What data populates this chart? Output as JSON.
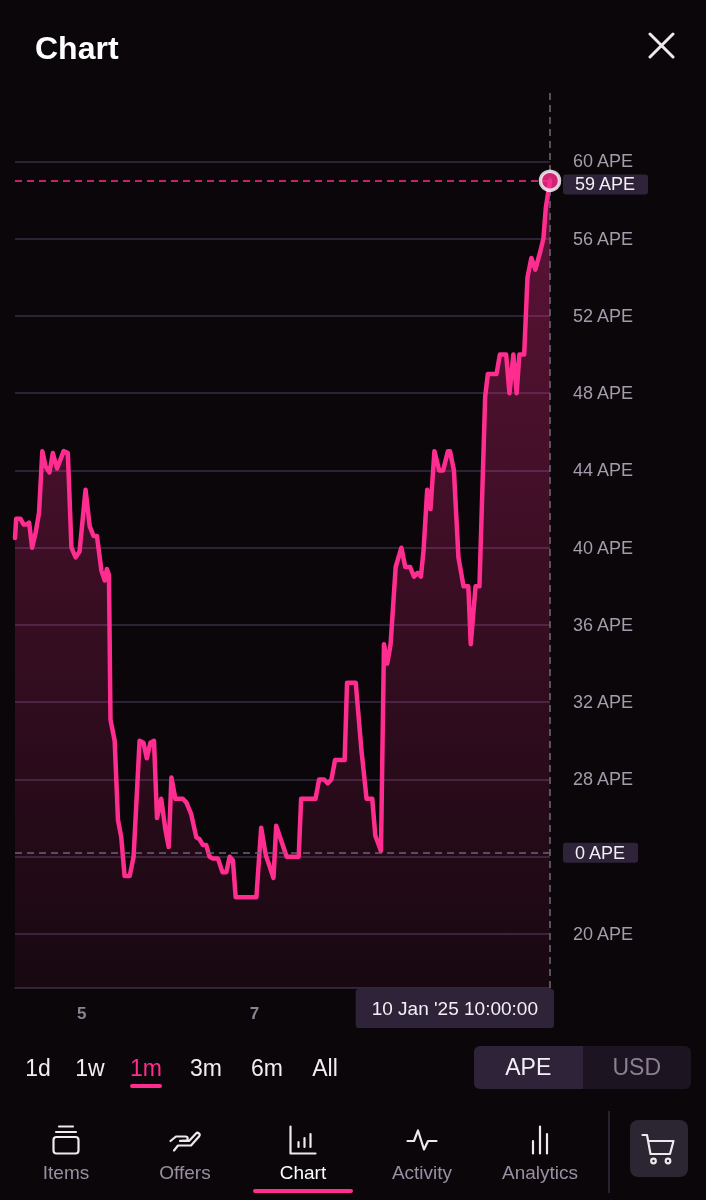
{
  "chart_data": {
    "type": "area",
    "title": "Chart",
    "x": [
      "2025-01-04T05:30",
      "2025-01-04T05:50",
      "2025-01-04T07:00",
      "2025-01-04T07:55",
      "2025-01-04T08:40",
      "2025-01-04T09:25",
      "2025-01-04T10:15",
      "2025-01-04T11:15",
      "2025-01-04T12:10",
      "2025-01-04T13:05",
      "2025-01-04T14:00",
      "2025-01-04T15:05",
      "2025-01-04T16:00",
      "2025-01-04T17:10",
      "2025-01-04T19:00",
      "2025-01-04T20:10",
      "2025-01-04T21:10",
      "2025-01-04T22:20",
      "2025-01-04T23:25",
      "2025-01-05T01:05",
      "2025-01-05T02:15",
      "2025-01-05T03:20",
      "2025-01-05T04:15",
      "2025-01-05T05:30",
      "2025-01-05T06:25",
      "2025-01-05T07:00",
      "2025-01-05T07:35",
      "2025-01-05T08:00",
      "2025-01-05T09:10",
      "2025-01-05T10:05",
      "2025-01-05T11:00",
      "2025-01-05T11:55",
      "2025-01-05T13:20",
      "2025-01-05T14:25",
      "2025-01-05T16:05",
      "2025-01-05T17:10",
      "2025-01-05T18:05",
      "2025-01-05T19:05",
      "2025-01-05T20:05",
      "2025-01-05T20:55",
      "2025-01-05T22:05",
      "2025-01-05T23:15",
      "2025-01-06T00:10",
      "2025-01-06T00:55",
      "2025-01-06T02:00",
      "2025-01-06T04:05",
      "2025-01-06T05:05",
      "2025-01-06T06:25",
      "2025-01-06T07:50",
      "2025-01-06T08:45",
      "2025-01-06T09:40",
      "2025-01-06T10:35",
      "2025-01-06T11:30",
      "2025-01-06T12:25",
      "2025-01-06T13:50",
      "2025-01-06T15:05",
      "2025-01-06T16:10",
      "2025-01-06T17:05",
      "2025-01-06T18:00",
      "2025-01-06T18:45",
      "2025-01-07T00:30",
      "2025-01-07T01:50",
      "2025-01-07T03:05",
      "2025-01-07T05:15",
      "2025-01-07T06:00",
      "2025-01-07T08:55",
      "2025-01-07T12:15",
      "2025-01-07T12:55",
      "2025-01-07T16:55",
      "2025-01-07T17:55",
      "2025-01-07T19:15",
      "2025-01-07T20:20",
      "2025-01-07T21:20",
      "2025-01-07T22:20",
      "2025-01-08T01:00",
      "2025-01-08T01:40",
      "2025-01-08T04:05",
      "2025-01-08T05:40",
      "2025-01-08T07:05",
      "2025-01-08T08:40",
      "2025-01-08T09:30",
      "2025-01-08T11:05",
      "2025-01-08T11:55",
      "2025-01-08T12:50",
      "2025-01-08T13:45",
      "2025-01-08T15:10",
      "2025-01-08T16:45",
      "2025-01-08T17:50",
      "2025-01-08T19:10",
      "2025-01-08T20:15",
      "2025-01-08T21:15",
      "2025-01-08T22:10",
      "2025-01-08T22:55",
      "2025-01-08T23:55",
      "2025-01-09T00:50",
      "2025-01-09T01:55",
      "2025-01-09T03:15",
      "2025-01-09T04:20",
      "2025-01-09T05:40",
      "2025-01-09T06:15",
      "2025-01-09T07:20",
      "2025-01-09T08:35",
      "2025-01-09T10:00",
      "2025-01-09T11:20",
      "2025-01-09T12:00",
      "2025-01-09T13:20",
      "2025-01-09T14:25",
      "2025-01-09T16:00",
      "2025-01-09T16:45",
      "2025-01-09T19:10",
      "2025-01-09T20:05",
      "2025-01-09T21:50",
      "2025-01-09T22:45",
      "2025-01-09T23:50",
      "2025-01-10T00:45",
      "2025-01-10T01:30",
      "2025-01-10T02:50",
      "2025-01-10T03:45",
      "2025-01-10T04:50",
      "2025-01-10T05:55",
      "2025-01-10T07:15",
      "2025-01-10T08:10",
      "2025-01-10T08:50",
      "2025-01-10T10:00"
    ],
    "series": [
      {
        "color": "#ff2d8f",
        "values": [
          40.5,
          41.5,
          41.5,
          41.2,
          41.2,
          41.3,
          40.0,
          40.8,
          41.8,
          45.0,
          44.2,
          43.9,
          44.9,
          44.1,
          45.0,
          44.9,
          40.0,
          39.5,
          39.8,
          43.0,
          41.1,
          40.6,
          40.6,
          38.8,
          38.3,
          38.9,
          38.6,
          31.1,
          30.0,
          25.9,
          25.0,
          23.0,
          23.0,
          24.0,
          30.0,
          29.9,
          29.1,
          29.9,
          30.0,
          26.0,
          27.0,
          25.4,
          24.5,
          28.1,
          27.0,
          27.0,
          26.8,
          26.2,
          25.0,
          24.9,
          24.6,
          24.6,
          24.0,
          23.9,
          23.9,
          23.2,
          23.2,
          24.0,
          23.8,
          21.9,
          21.9,
          25.5,
          24.1,
          22.9,
          25.6,
          24.0,
          24.0,
          27.0,
          27.0,
          28.0,
          28.0,
          27.8,
          28.0,
          29.0,
          29.0,
          33.0,
          33.0,
          29.5,
          27.0,
          27.0,
          25.1,
          24.3,
          35.0,
          34.0,
          35.0,
          39.0,
          40.0,
          39.0,
          39.0,
          38.5,
          38.7,
          38.5,
          39.9,
          43.0,
          42.0,
          45.0,
          44.0,
          44.0,
          45.0,
          45.0,
          44.0,
          39.5,
          38.0,
          38.0,
          35.0,
          38.0,
          38.0,
          47.8,
          49.0,
          49.0,
          50.0,
          50.0,
          48.0,
          50.0,
          48.0,
          50.0,
          50.0,
          54.0,
          55.0,
          54.4,
          55.3,
          56.0,
          57.6,
          59.0
        ]
      },
      {
        "type": "scatter",
        "color": "#ff2d8f",
        "marker": "circle",
        "x": [
          "2025-01-10T10:00"
        ],
        "values": [
          59.0
        ]
      }
    ],
    "xlim": [
      "2025-01-04T05:30",
      "2025-01-10T10:00"
    ],
    "xticks": [
      {
        "value": "2025-01-05",
        "label": "5"
      },
      {
        "value": "2025-01-07",
        "label": "7"
      }
    ],
    "ylim": [
      17.2,
      63.7
    ],
    "yticks": [
      {
        "value": 20,
        "label": "20 APE"
      },
      {
        "value": 24,
        "label": null
      },
      {
        "value": 28,
        "label": "28 APE"
      },
      {
        "value": 32,
        "label": "32 APE"
      },
      {
        "value": 36,
        "label": "36 APE"
      },
      {
        "value": 40,
        "label": "40 APE"
      },
      {
        "value": 44,
        "label": "44 APE"
      },
      {
        "value": 48,
        "label": "48 APE"
      },
      {
        "value": 52,
        "label": "52 APE"
      },
      {
        "value": 56,
        "label": "56 APE"
      },
      {
        "value": 60,
        "label": "60 APE"
      }
    ],
    "ref_lines": [
      {
        "axis": "y",
        "value": 59,
        "label": "59 APE",
        "color": "#ff2d8f",
        "line_style": "dashed"
      },
      {
        "axis": "y",
        "value": 24.2,
        "label": "0 APE",
        "color": "#6d6275",
        "line_style": "dashed"
      },
      {
        "axis": "x",
        "value": "2025-01-10T10:00",
        "label": "10 Jan '25 10:00:00",
        "color": "#6d6275",
        "line_style": "dashed"
      }
    ],
    "annotations": [
      "1d",
      "1w",
      "1m",
      "3m",
      "6m",
      "All",
      "APE",
      "USD",
      "Items",
      "Offers",
      "Chart",
      "Activity",
      "Analytics"
    ],
    "grid": "y",
    "marker": "none"
  }
}
